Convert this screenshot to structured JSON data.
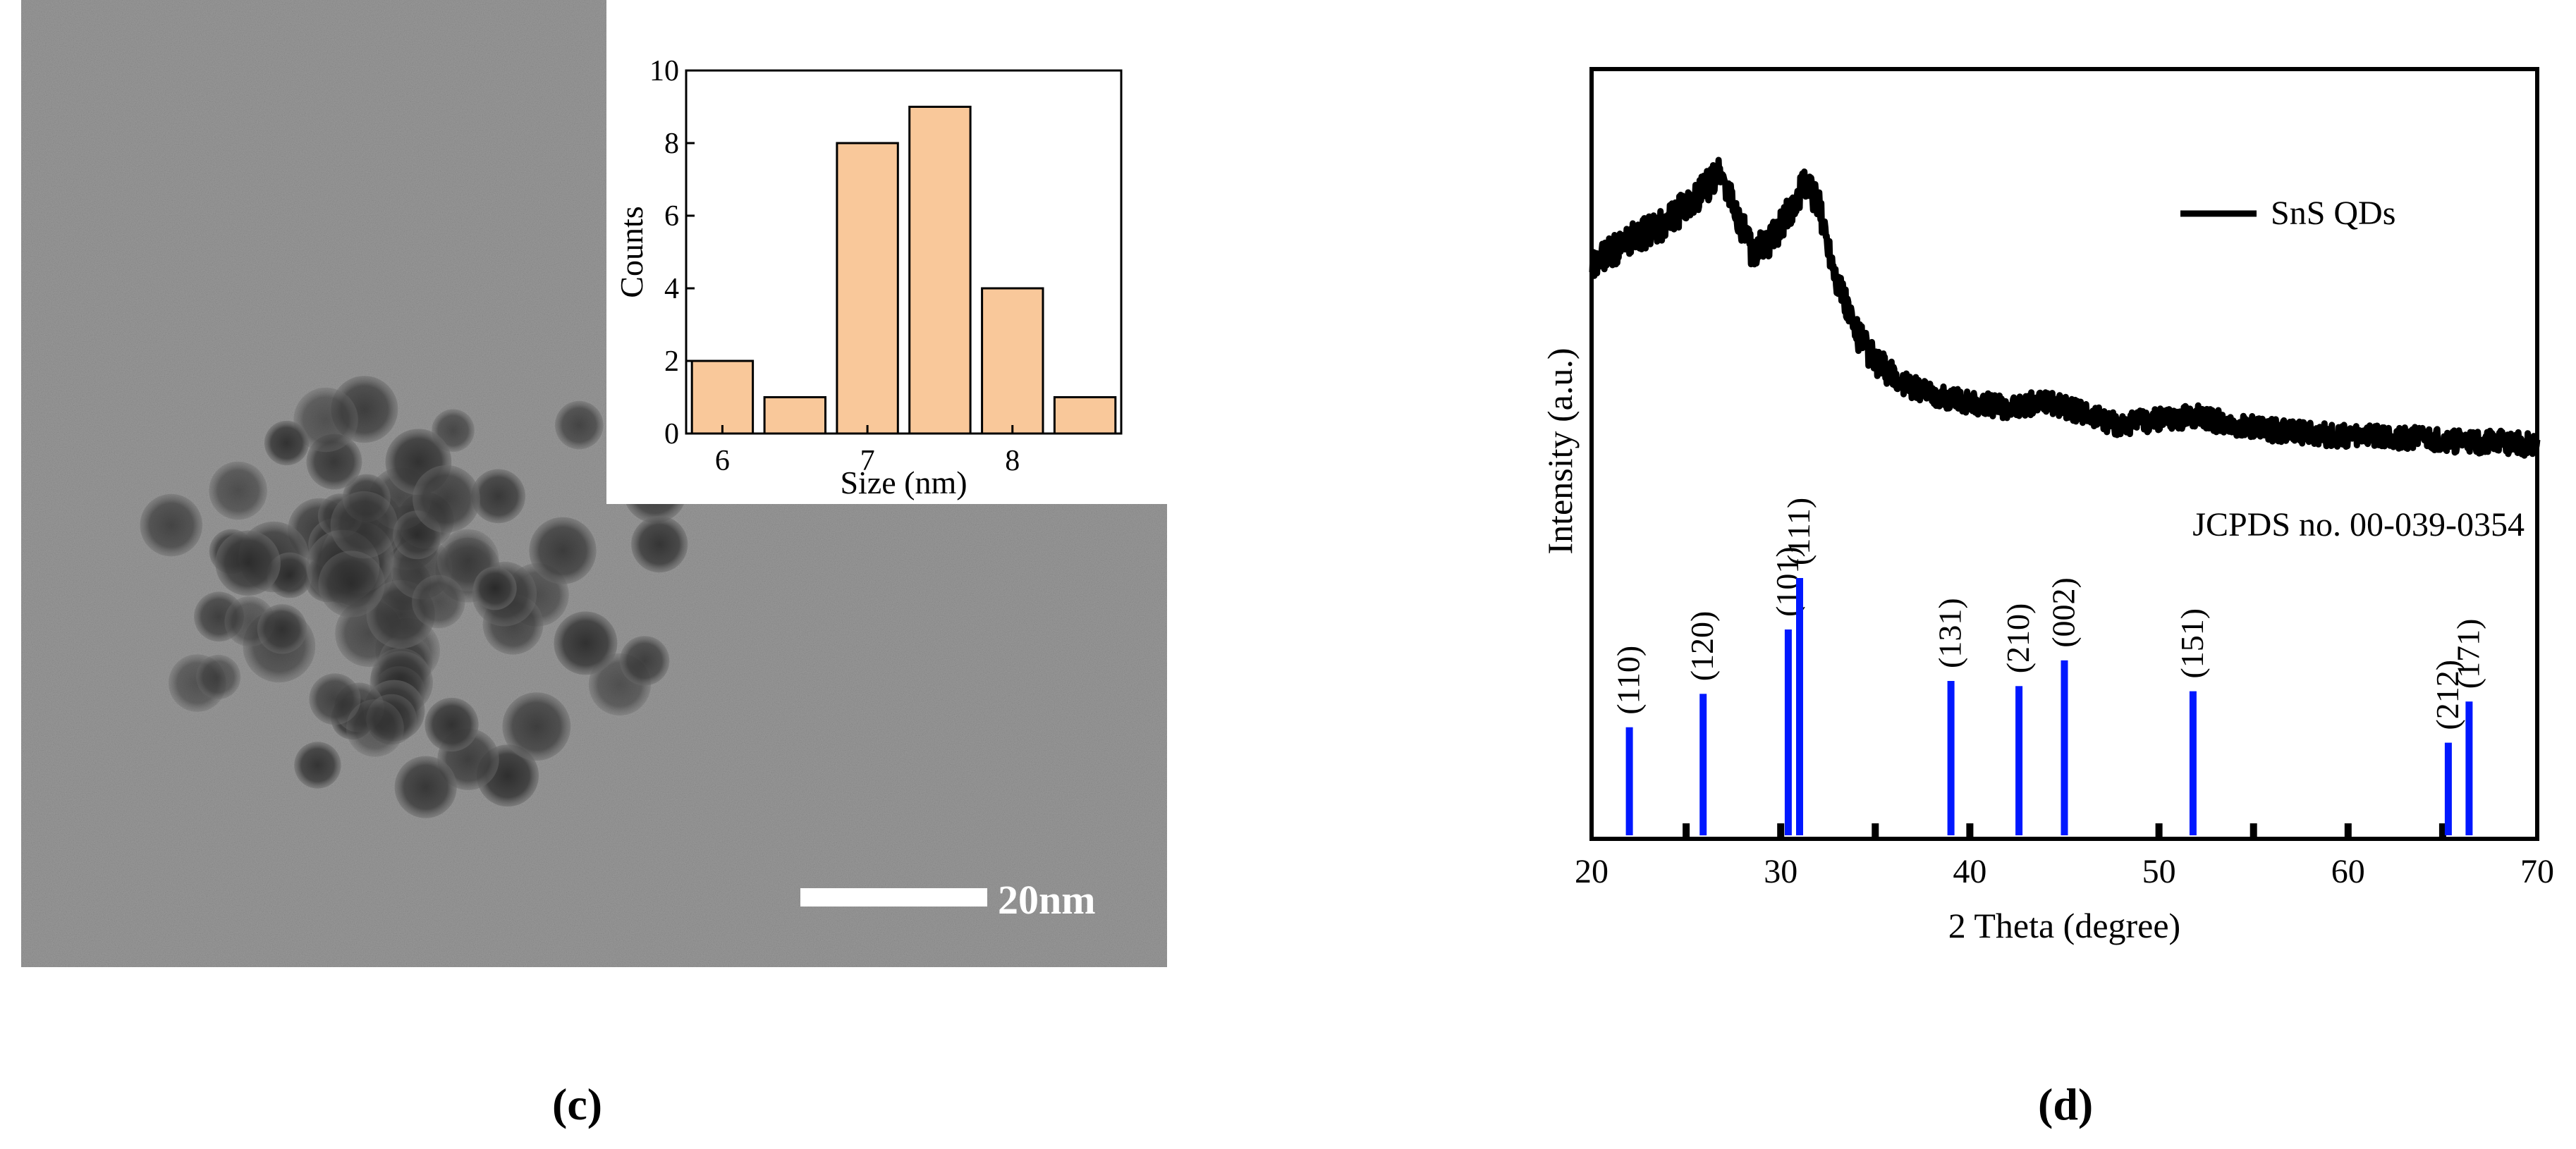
{
  "panels": {
    "c": {
      "label": "(c)"
    },
    "d": {
      "label": "(d)"
    }
  },
  "tem": {
    "scale_bar_label": "20nm",
    "colors": {
      "background": "#9a9a9a",
      "particle": "#2e2e2e",
      "scale_bar": "#ffffff"
    }
  },
  "chart_data": [
    {
      "type": "bar",
      "title": "",
      "xlabel": "Size (nm)",
      "ylabel": "Counts",
      "categories": [
        6.0,
        6.5,
        7.0,
        7.5,
        8.0,
        8.5
      ],
      "values": [
        2,
        1,
        8,
        9,
        4,
        1
      ],
      "xlim": [
        5.75,
        8.75
      ],
      "ylim": [
        0,
        10
      ],
      "xticks": [
        6,
        7,
        8
      ],
      "yticks": [
        0,
        2,
        4,
        6,
        8,
        10
      ],
      "bar_width": 0.42,
      "bar_color": "#f9c89a",
      "bar_edge_color": "#000000"
    },
    {
      "type": "line",
      "title": "",
      "xlabel": "2 Theta (degree)",
      "ylabel": "Intensity (a.u.)",
      "xlim": [
        20,
        70
      ],
      "xticks": [
        20,
        30,
        40,
        50,
        60,
        70
      ],
      "series": [
        {
          "name": "SnS QDs",
          "color": "#000000",
          "x": [
            20,
            22,
            24,
            25,
            26,
            26.8,
            27.5,
            28.5,
            29.5,
            30.5,
            31.3,
            32,
            33,
            34,
            35,
            36,
            38,
            40,
            42,
            44,
            46,
            48,
            50,
            52,
            54,
            56,
            58,
            60,
            62,
            64,
            66,
            68,
            70
          ],
          "y": [
            0.8,
            0.84,
            0.87,
            0.9,
            0.93,
            0.96,
            0.9,
            0.82,
            0.84,
            0.89,
            0.94,
            0.9,
            0.77,
            0.68,
            0.63,
            0.6,
            0.57,
            0.56,
            0.55,
            0.56,
            0.54,
            0.52,
            0.53,
            0.535,
            0.52,
            0.51,
            0.505,
            0.5,
            0.5,
            0.495,
            0.49,
            0.49,
            0.485
          ]
        }
      ],
      "reference": {
        "name": "JCPDS no. 00-039-0354",
        "color": "#0018ff",
        "peaks": [
          {
            "x": 22.0,
            "intensity": 0.42,
            "label": "(110)"
          },
          {
            "x": 25.9,
            "intensity": 0.55,
            "label": "(120)"
          },
          {
            "x": 30.4,
            "intensity": 0.8,
            "label": "(101)"
          },
          {
            "x": 31.0,
            "intensity": 1.0,
            "label": "(111)"
          },
          {
            "x": 39.0,
            "intensity": 0.6,
            "label": "(131)"
          },
          {
            "x": 42.6,
            "intensity": 0.58,
            "label": "(210)"
          },
          {
            "x": 45.0,
            "intensity": 0.68,
            "label": "(002)"
          },
          {
            "x": 51.8,
            "intensity": 0.56,
            "label": "(151)"
          },
          {
            "x": 65.3,
            "intensity": 0.36,
            "label": "(212)"
          },
          {
            "x": 66.4,
            "intensity": 0.52,
            "label": "(171)"
          }
        ]
      }
    }
  ]
}
